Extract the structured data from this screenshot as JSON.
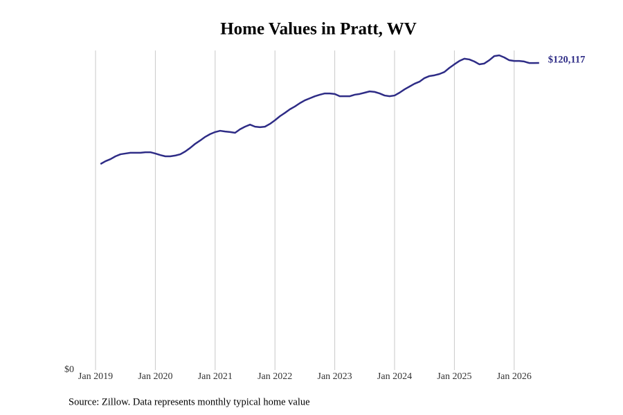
{
  "chart_data": {
    "type": "line",
    "title": "Home Values in Pratt, WV",
    "source": "Source: Zillow. Data represents monthly typical home value",
    "x": [
      "2019-02",
      "2019-03",
      "2019-04",
      "2019-05",
      "2019-06",
      "2019-07",
      "2019-08",
      "2019-09",
      "2019-10",
      "2019-11",
      "2019-12",
      "2020-01",
      "2020-02",
      "2020-03",
      "2020-04",
      "2020-05",
      "2020-06",
      "2020-07",
      "2020-08",
      "2020-09",
      "2020-10",
      "2020-11",
      "2020-12",
      "2021-01",
      "2021-02",
      "2021-03",
      "2021-04",
      "2021-05",
      "2021-06",
      "2021-07",
      "2021-08",
      "2021-09",
      "2021-10",
      "2021-11",
      "2021-12",
      "2022-01",
      "2022-02",
      "2022-03",
      "2022-04",
      "2022-05",
      "2022-06",
      "2022-07",
      "2022-08",
      "2022-09",
      "2022-10",
      "2022-11",
      "2022-12",
      "2023-01",
      "2023-02",
      "2023-03",
      "2023-04",
      "2023-05",
      "2023-06",
      "2023-07",
      "2023-08",
      "2023-09",
      "2023-10",
      "2023-11",
      "2023-12",
      "2024-01",
      "2024-02",
      "2024-03",
      "2024-04",
      "2024-05",
      "2024-06",
      "2024-07",
      "2024-08",
      "2024-09",
      "2024-10",
      "2024-11",
      "2024-12",
      "2025-01",
      "2025-02",
      "2025-03",
      "2025-04",
      "2025-05",
      "2025-06",
      "2025-07",
      "2025-08",
      "2025-09",
      "2025-10",
      "2025-11",
      "2025-12",
      "2026-01",
      "2026-02",
      "2026-03",
      "2026-04",
      "2026-05",
      "2026-06"
    ],
    "series": [
      {
        "name": "Home value",
        "color": "#2e2c86",
        "values": [
          80600,
          81700,
          82500,
          83600,
          84400,
          84700,
          85000,
          85000,
          85000,
          85200,
          85200,
          84700,
          84100,
          83600,
          83600,
          83900,
          84400,
          85500,
          86900,
          88500,
          89800,
          91200,
          92300,
          93100,
          93600,
          93300,
          93100,
          92800,
          94200,
          95200,
          96000,
          95200,
          95000,
          95200,
          96300,
          97700,
          99300,
          100600,
          102000,
          103100,
          104400,
          105500,
          106300,
          107100,
          107700,
          108200,
          108200,
          108000,
          107100,
          107100,
          107100,
          107700,
          108000,
          108500,
          109000,
          108800,
          108200,
          107400,
          107100,
          107400,
          108500,
          109800,
          110900,
          112000,
          112800,
          114200,
          115000,
          115300,
          115800,
          116600,
          118200,
          119600,
          120900,
          121800,
          121500,
          120700,
          119600,
          119900,
          121200,
          122800,
          123100,
          122300,
          121200,
          120900,
          120900,
          120700,
          120100,
          120100,
          120117
        ],
        "value_labels": {
          "88": "$120,117"
        }
      }
    ],
    "xlim": [
      "2019-01",
      "2026-12"
    ],
    "xticks": [
      {
        "value": "2019-01",
        "label": "Jan 2019"
      },
      {
        "value": "2020-01",
        "label": "Jan 2020"
      },
      {
        "value": "2021-01",
        "label": "Jan 2021"
      },
      {
        "value": "2022-01",
        "label": "Jan 2022"
      },
      {
        "value": "2023-01",
        "label": "Jan 2023"
      },
      {
        "value": "2024-01",
        "label": "Jan 2024"
      },
      {
        "value": "2025-01",
        "label": "Jan 2025"
      },
      {
        "value": "2026-01",
        "label": "Jan 2026"
      }
    ],
    "ylim": [
      0,
      125000
    ],
    "yticks": [
      {
        "value": 0,
        "label": "$0"
      }
    ],
    "grid": true
  }
}
